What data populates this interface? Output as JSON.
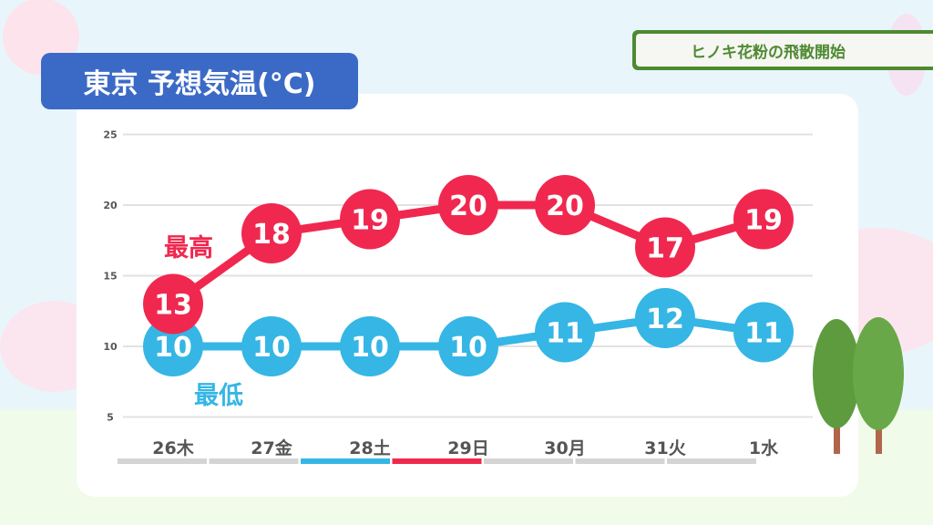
{
  "header": {
    "title": "東京 予想気温(°C)",
    "badge": "ヒノキ花粉の飛散開始"
  },
  "chart_data": {
    "type": "line",
    "title": "東京 予想気温(°C)",
    "categories": [
      "26木",
      "27金",
      "28土",
      "29日",
      "30月",
      "31火",
      "1水"
    ],
    "category_highlights": {
      "28土": "#35b6e5",
      "29日": "#f0284f"
    },
    "series": [
      {
        "name": "最高",
        "color": "#f0284f",
        "values": [
          13,
          18,
          19,
          20,
          20,
          17,
          19
        ]
      },
      {
        "name": "最低",
        "color": "#35b6e5",
        "values": [
          10,
          10,
          10,
          10,
          11,
          12,
          11
        ]
      }
    ],
    "yticks": [
      5,
      10,
      15,
      20,
      25
    ],
    "ylim": [
      5,
      25
    ],
    "grid": true,
    "legend": "inline labels"
  }
}
